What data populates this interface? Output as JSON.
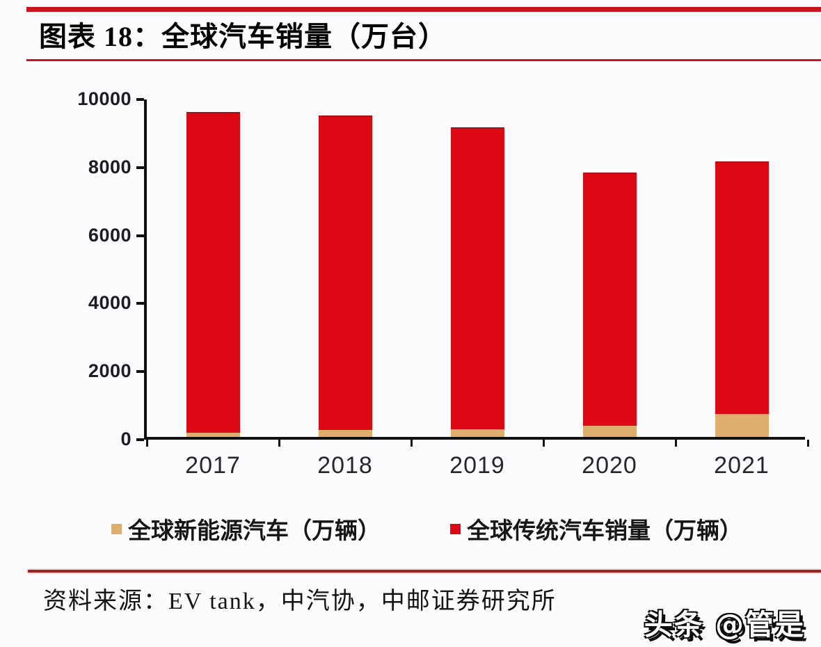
{
  "header": {
    "chart_label": "图表 18：全球汽车销量（万台）"
  },
  "chart_data": {
    "type": "bar",
    "stacked": true,
    "title": "全球汽车销量（万台）",
    "categories": [
      "2017",
      "2018",
      "2019",
      "2020",
      "2021"
    ],
    "series": [
      {
        "name": "全球新能源汽车（万辆）",
        "color": "#dfad6e",
        "values": [
          122,
          202,
          221,
          331,
          670
        ]
      },
      {
        "name": "全球传统汽车销量（万辆）",
        "color": "#dc0914",
        "values": [
          9430,
          9250,
          8880,
          7450,
          7430
        ]
      }
    ],
    "totals": [
      9552,
      9452,
      9101,
      7781,
      8100
    ],
    "xlabel": "",
    "ylabel": "",
    "ylim": [
      0,
      10000
    ],
    "yticks": [
      0,
      2000,
      4000,
      6000,
      8000,
      10000
    ],
    "grid": false,
    "legend_position": "bottom"
  },
  "footer": {
    "source": "资料来源：EV tank，中汽协，中邮证券研究所"
  },
  "watermark": "头条 @管是",
  "colors": {
    "accent_rule": "#c9131e",
    "bottom_rule": "#97291f",
    "bar_red": "#dc0914",
    "bar_tan": "#dfad6e",
    "axis": "#111111"
  }
}
